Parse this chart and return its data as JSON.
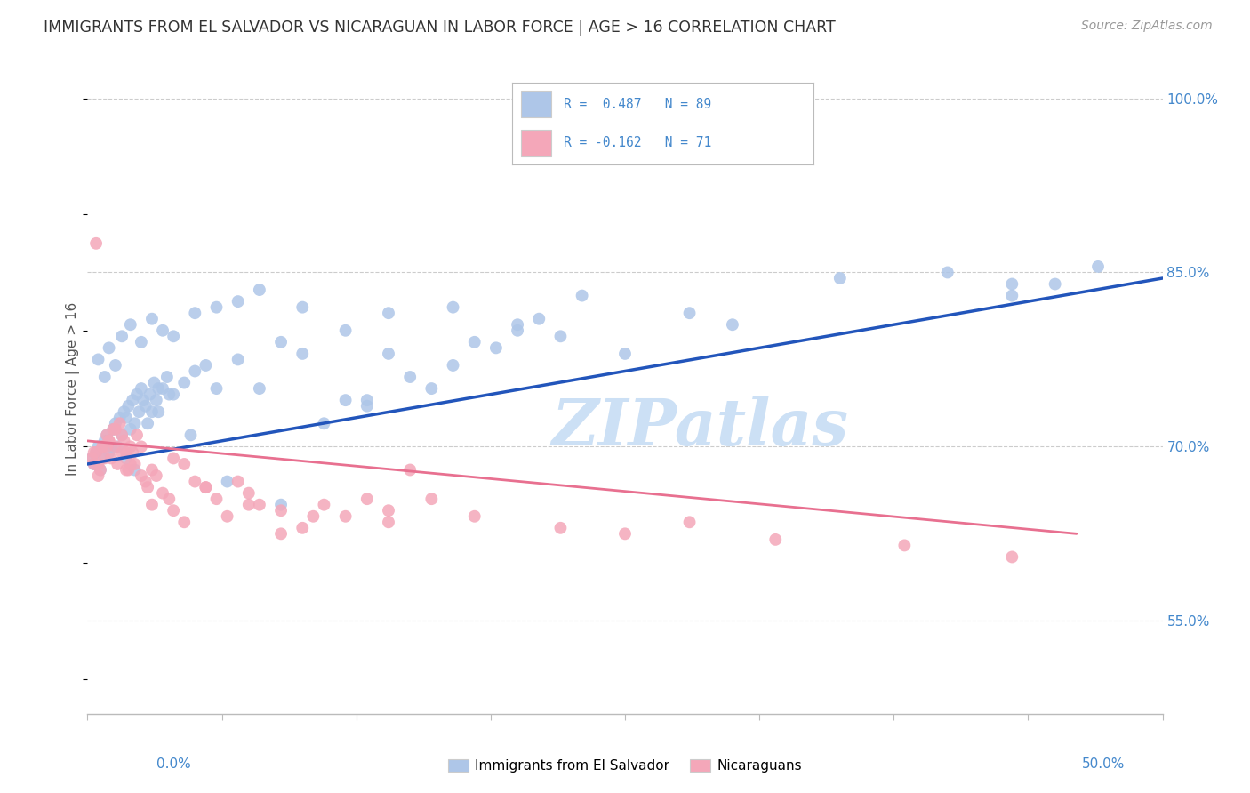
{
  "title": "IMMIGRANTS FROM EL SALVADOR VS NICARAGUAN IN LABOR FORCE | AGE > 16 CORRELATION CHART",
  "source": "Source: ZipAtlas.com",
  "ylabel": "In Labor Force | Age > 16",
  "xmin": 0.0,
  "xmax": 50.0,
  "ymin": 47.0,
  "ymax": 103.0,
  "blue_color": "#aec6e8",
  "pink_color": "#f4a7b9",
  "line_blue": "#2255bb",
  "line_pink": "#e87090",
  "watermark_color": "#cce0f5",
  "grid_color": "#cccccc",
  "bg_color": "#ffffff",
  "right_tick_color": "#4488cc",
  "blue_scatter_x": [
    0.2,
    0.3,
    0.4,
    0.5,
    0.6,
    0.7,
    0.8,
    0.9,
    1.0,
    1.1,
    1.2,
    1.3,
    1.4,
    1.5,
    1.6,
    1.7,
    1.8,
    1.9,
    2.0,
    2.1,
    2.2,
    2.3,
    2.4,
    2.5,
    2.6,
    2.7,
    2.8,
    2.9,
    3.0,
    3.1,
    3.2,
    3.3,
    3.5,
    3.7,
    3.8,
    4.0,
    4.5,
    5.0,
    5.5,
    6.0,
    7.0,
    8.0,
    9.0,
    10.0,
    11.0,
    12.0,
    13.0,
    14.0,
    15.0,
    16.0,
    17.0,
    18.0,
    19.0,
    20.0,
    21.0,
    22.0,
    25.0,
    28.0,
    30.0,
    43.0,
    45.0,
    0.5,
    0.8,
    1.0,
    1.3,
    1.6,
    2.0,
    2.5,
    3.0,
    3.5,
    4.0,
    5.0,
    6.0,
    7.0,
    8.0,
    10.0,
    12.0,
    14.0,
    17.0,
    20.0,
    23.0,
    35.0,
    40.0,
    43.0,
    47.0,
    9.0,
    6.5,
    4.8,
    3.3,
    2.2,
    1.8,
    13.0
  ],
  "blue_scatter_y": [
    69.0,
    68.5,
    69.5,
    70.0,
    68.0,
    69.0,
    70.5,
    71.0,
    69.5,
    70.0,
    71.5,
    72.0,
    70.0,
    72.5,
    71.0,
    73.0,
    72.5,
    73.5,
    71.5,
    74.0,
    72.0,
    74.5,
    73.0,
    75.0,
    74.0,
    73.5,
    72.0,
    74.5,
    73.0,
    75.5,
    74.0,
    75.0,
    75.0,
    76.0,
    74.5,
    74.5,
    75.5,
    76.5,
    77.0,
    75.0,
    77.5,
    75.0,
    79.0,
    78.0,
    72.0,
    74.0,
    73.5,
    78.0,
    76.0,
    75.0,
    77.0,
    79.0,
    78.5,
    80.0,
    81.0,
    79.5,
    78.0,
    81.5,
    80.5,
    83.0,
    84.0,
    77.5,
    76.0,
    78.5,
    77.0,
    79.5,
    80.5,
    79.0,
    81.0,
    80.0,
    79.5,
    81.5,
    82.0,
    82.5,
    83.5,
    82.0,
    80.0,
    81.5,
    82.0,
    80.5,
    83.0,
    84.5,
    85.0,
    84.0,
    85.5,
    65.0,
    67.0,
    71.0,
    73.0,
    68.0,
    69.0,
    74.0
  ],
  "pink_scatter_x": [
    0.2,
    0.3,
    0.4,
    0.5,
    0.6,
    0.7,
    0.8,
    0.9,
    1.0,
    1.1,
    1.2,
    1.3,
    1.4,
    1.5,
    1.6,
    1.7,
    1.8,
    1.9,
    2.0,
    2.1,
    2.2,
    2.3,
    2.5,
    2.7,
    3.0,
    3.2,
    3.5,
    3.8,
    4.0,
    4.5,
    5.0,
    5.5,
    6.0,
    6.5,
    7.0,
    7.5,
    8.0,
    9.0,
    10.0,
    11.0,
    12.0,
    13.0,
    14.0,
    15.0,
    0.3,
    0.5,
    0.7,
    1.0,
    1.3,
    1.6,
    2.0,
    2.5,
    3.0,
    4.0,
    5.5,
    7.5,
    10.5,
    14.0,
    16.0,
    18.0,
    22.0,
    25.0,
    28.0,
    32.0,
    38.0,
    43.0,
    0.9,
    1.8,
    2.8,
    4.5,
    9.0,
    0.4
  ],
  "pink_scatter_y": [
    69.0,
    68.5,
    69.5,
    67.5,
    68.0,
    70.0,
    69.0,
    71.0,
    70.5,
    69.0,
    71.5,
    70.0,
    68.5,
    72.0,
    71.0,
    70.5,
    69.5,
    68.0,
    70.0,
    69.5,
    68.5,
    71.0,
    70.0,
    67.0,
    68.0,
    67.5,
    66.0,
    65.5,
    69.0,
    68.5,
    67.0,
    66.5,
    65.5,
    64.0,
    67.0,
    66.0,
    65.0,
    64.5,
    63.0,
    65.0,
    64.0,
    65.5,
    64.5,
    68.0,
    69.5,
    68.5,
    70.0,
    70.5,
    71.5,
    69.5,
    68.5,
    67.5,
    65.0,
    64.5,
    66.5,
    65.0,
    64.0,
    63.5,
    65.5,
    64.0,
    63.0,
    62.5,
    63.5,
    62.0,
    61.5,
    60.5,
    70.0,
    68.0,
    66.5,
    63.5,
    62.5,
    87.5
  ],
  "blue_trend_x": [
    0.0,
    50.0
  ],
  "blue_trend_y": [
    68.5,
    84.5
  ],
  "pink_trend_x": [
    0.0,
    46.0
  ],
  "pink_trend_y": [
    70.5,
    62.5
  ],
  "yticks": [
    55.0,
    70.0,
    85.0,
    100.0
  ],
  "ytick_labels": [
    "55.0%",
    "70.0%",
    "85.0%",
    "100.0%"
  ]
}
